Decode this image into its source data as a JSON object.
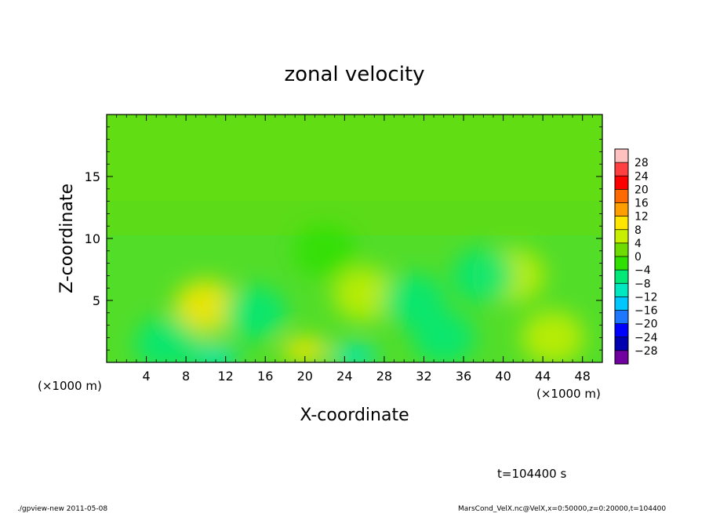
{
  "chart_data": {
    "type": "heatmap",
    "title": "zonal velocity",
    "xlabel": "X-coordinate",
    "ylabel": "Z-coordinate",
    "x_unit_left": "(×1000 m)",
    "x_unit_right": "(×1000 m)",
    "xlim": [
      0,
      50
    ],
    "ylim": [
      0,
      20
    ],
    "x_ticks": [
      "4",
      "8",
      "12",
      "16",
      "20",
      "24",
      "28",
      "32",
      "36",
      "40",
      "44",
      "48"
    ],
    "y_ticks": [
      "5",
      "10",
      "15"
    ],
    "colorbar": {
      "labels": [
        "28",
        "24",
        "20",
        "16",
        "12",
        "8",
        "4",
        "0",
        "−4",
        "−8",
        "−12",
        "−16",
        "−20",
        "−24",
        "−28"
      ],
      "levels": [
        28,
        24,
        20,
        16,
        12,
        8,
        4,
        0,
        -4,
        -8,
        -12,
        -16,
        -20,
        -24,
        -28
      ],
      "colors": [
        "#ffc0c0",
        "#ff4040",
        "#ff0000",
        "#ff6a00",
        "#ff9e00",
        "#ffe600",
        "#c8ee00",
        "#6edc00",
        "#30e000",
        "#00e878",
        "#00e8c0",
        "#00c8ff",
        "#1e78ff",
        "#0000ff",
        "#0000b0",
        "#7000a0"
      ]
    },
    "field_features": [
      {
        "x": 10,
        "z": 4.5,
        "value": 8
      },
      {
        "x": 20,
        "z": 1,
        "value": 10
      },
      {
        "x": 26,
        "z": 5.5,
        "value": 6
      },
      {
        "x": 41,
        "z": 7,
        "value": 6
      },
      {
        "x": 45,
        "z": 2,
        "value": 5
      },
      {
        "x": 15,
        "z": 4,
        "value": -6
      },
      {
        "x": 31,
        "z": 5,
        "value": -6
      },
      {
        "x": 38,
        "z": 7,
        "value": -7
      },
      {
        "x": 11,
        "z": 0.4,
        "value": -12
      },
      {
        "x": 25,
        "z": 0.5,
        "value": -10
      },
      {
        "x": 6,
        "z": 1.5,
        "value": -6
      },
      {
        "x": 34,
        "z": 2,
        "value": -6
      },
      {
        "x": 22,
        "z": 9,
        "value": -3
      }
    ]
  },
  "footer": {
    "time_label": "t=104400 s",
    "left_note": "./gpview-new  2011-05-08",
    "right_note": "MarsCond_VelX.nc@VelX,x=0:50000,z=0:20000,t=104400"
  }
}
